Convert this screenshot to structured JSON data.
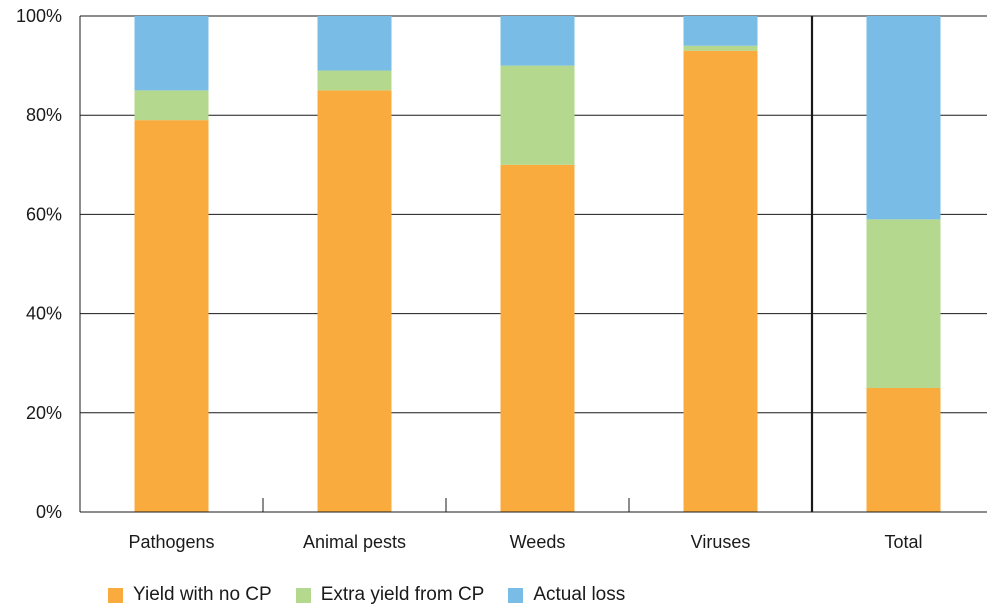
{
  "chart_data": {
    "type": "bar",
    "stacked": true,
    "title": "",
    "xlabel": "",
    "ylabel": "",
    "ylim": [
      0,
      100
    ],
    "y_ticks": [
      "0%",
      "20%",
      "40%",
      "60%",
      "80%",
      "100%"
    ],
    "y_tick_values": [
      0,
      20,
      40,
      60,
      80,
      100
    ],
    "categories": [
      "Pathogens",
      "Animal pests",
      "Weeds",
      "Viruses",
      "Total"
    ],
    "series": [
      {
        "name": "Yield with no CP",
        "color": "#f9ac3d",
        "values": [
          79,
          85,
          70,
          93,
          25
        ]
      },
      {
        "name": "Extra yield from CP",
        "color": "#b3d88e",
        "values": [
          6,
          4,
          20,
          1,
          34
        ]
      },
      {
        "name": "Actual loss",
        "color": "#79bde6",
        "values": [
          15,
          11,
          10,
          6,
          41
        ]
      }
    ],
    "grid": true,
    "legend_position": "bottom-left",
    "separator_before_category": "Total"
  }
}
